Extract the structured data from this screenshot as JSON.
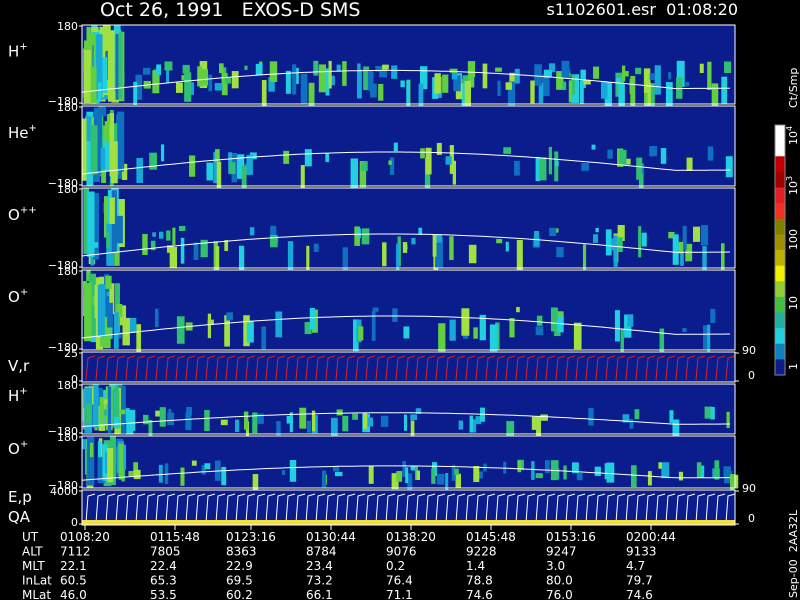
{
  "header": {
    "title": "Oct 26, 1991   EXOS-D SMS",
    "file": "s1102601.esr  01:08:20"
  },
  "panels": [
    {
      "label": "H",
      "sup": "+",
      "ticks": [
        "180",
        "−180"
      ]
    },
    {
      "label": "He",
      "sup": "+",
      "ticks": [
        "180",
        "−180"
      ]
    },
    {
      "label": "O",
      "sup": "++",
      "ticks": [
        "180",
        "−180"
      ]
    },
    {
      "label": "O",
      "sup": "+",
      "ticks": [
        "180",
        "−180"
      ]
    },
    {
      "label": "V,r",
      "ticks": [
        "25",
        "0"
      ],
      "right_ticks": [
        "90",
        "0"
      ]
    },
    {
      "label": "H",
      "sup": "+",
      "ticks": [
        "180",
        "−180"
      ]
    },
    {
      "label": "O",
      "sup": "+",
      "ticks": [
        "180",
        "−180"
      ]
    },
    {
      "label": "E,p",
      "label2": "QA",
      "ticks": [
        "4000",
        "0"
      ],
      "right_ticks": [
        "90",
        "0"
      ]
    }
  ],
  "colorbar": {
    "unit": "Ct/Smp",
    "labels": [
      {
        "base": "10",
        "sup": "4"
      },
      {
        "base": "10",
        "sup": "3"
      },
      {
        "base": "100"
      },
      {
        "base": "10"
      },
      {
        "base": "1"
      }
    ]
  },
  "ephemeris": {
    "rows": [
      {
        "name": "UT",
        "values": [
          "0108:20",
          "0115:48",
          "0123:16",
          "0130:44",
          "0138:20",
          "0145:48",
          "0153:16",
          "0200:44"
        ]
      },
      {
        "name": "ALT",
        "values": [
          "7112",
          "7805",
          "8363",
          "8784",
          "9076",
          "9228",
          "9247",
          "9133"
        ]
      },
      {
        "name": "MLT",
        "values": [
          "22.1",
          "22.4",
          "22.9",
          "23.4",
          "0.2",
          "1.4",
          "3.0",
          "4.7"
        ]
      },
      {
        "name": "InLat",
        "values": [
          "60.5",
          "65.3",
          "69.5",
          "73.2",
          "76.4",
          "78.8",
          "80.0",
          "79.7"
        ]
      },
      {
        "name": "MLat",
        "values": [
          "46.0",
          "53.5",
          "60.2",
          "66.1",
          "71.1",
          "74.6",
          "76.0",
          "74.6"
        ]
      }
    ]
  },
  "footer": "Sep-00  2AA32L"
}
